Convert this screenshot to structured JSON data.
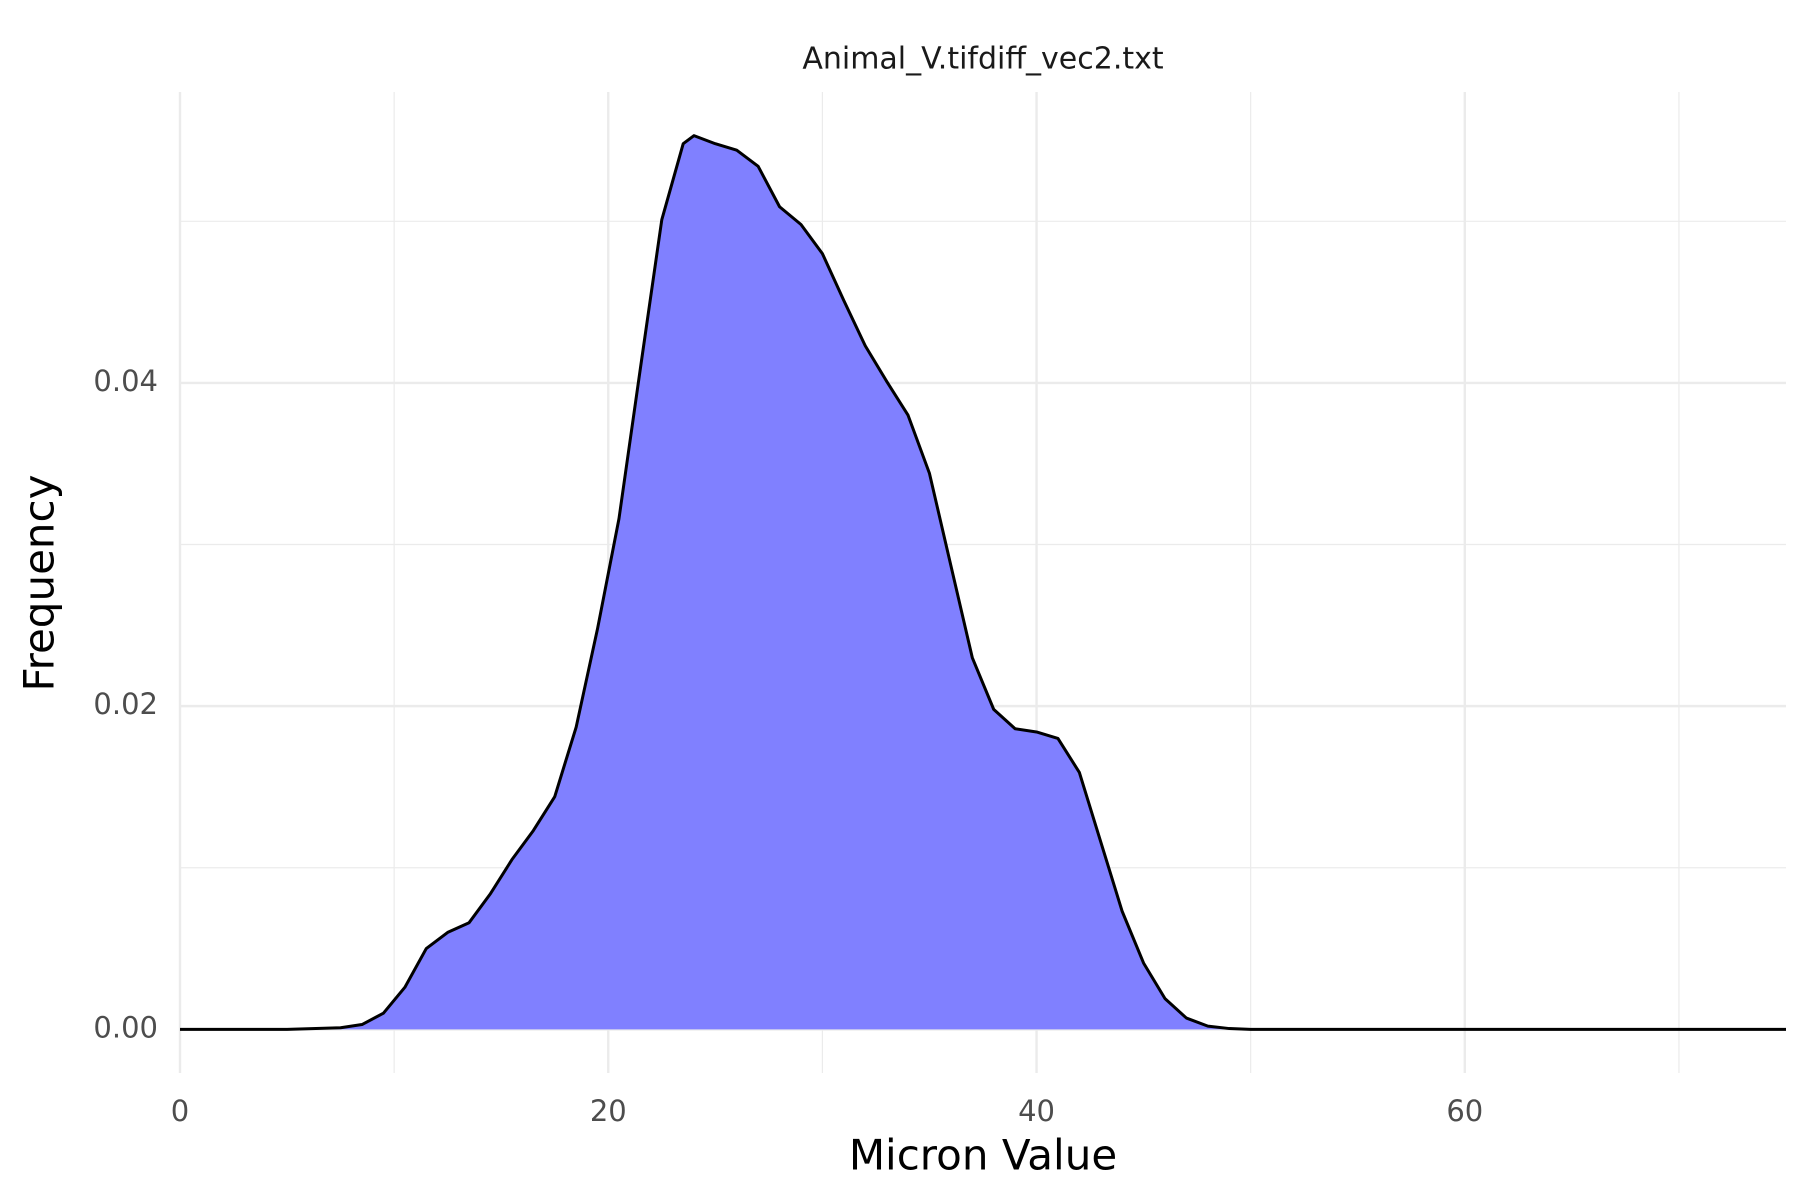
{
  "chart_data": {
    "type": "area",
    "title": "Animal_V.tifdiff_vec2.txt",
    "x_label": "Micron Value",
    "y_label": "Frequency",
    "x": [
      0,
      5,
      7.5,
      8.5,
      9.5,
      10.5,
      11.5,
      12.5,
      13.5,
      14.5,
      15.5,
      16.5,
      17.5,
      18.5,
      19.5,
      20.5,
      21.5,
      22.5,
      23.5,
      24,
      25,
      26,
      27,
      28,
      29,
      30,
      31,
      32,
      33,
      34,
      35,
      36,
      37,
      38,
      39,
      40,
      41,
      42,
      43,
      44,
      45,
      46,
      47,
      48,
      49,
      50,
      75
    ],
    "values": [
      0,
      0,
      0.0001,
      0.0003,
      0.001,
      0.0026,
      0.005,
      0.006,
      0.0066,
      0.0084,
      0.0105,
      0.0123,
      0.0144,
      0.0187,
      0.0248,
      0.0316,
      0.0409,
      0.0501,
      0.0548,
      0.0553,
      0.0548,
      0.0544,
      0.0534,
      0.0509,
      0.0498,
      0.048,
      0.0451,
      0.0423,
      0.0401,
      0.038,
      0.0344,
      0.0287,
      0.023,
      0.0198,
      0.0186,
      0.0184,
      0.018,
      0.0159,
      0.0116,
      0.0073,
      0.0041,
      0.0019,
      0.0007,
      0.0002,
      5e-05,
      0,
      0
    ],
    "color": "#8080ff",
    "line_color": "#000000",
    "xlim": [
      0,
      75
    ],
    "ylim": [
      -0.0027,
      0.058
    ],
    "xticks": [
      0,
      20,
      40,
      60
    ],
    "yticks": [
      {
        "value": 0,
        "label": "0.00"
      },
      {
        "value": 0.02,
        "label": "0.02"
      },
      {
        "value": 0.04,
        "label": "0.04"
      }
    ],
    "x_minor_ticks": [
      10,
      30,
      50,
      70
    ],
    "y_minor_ticks": [
      0.01,
      0.03,
      0.05
    ],
    "grid": true
  }
}
